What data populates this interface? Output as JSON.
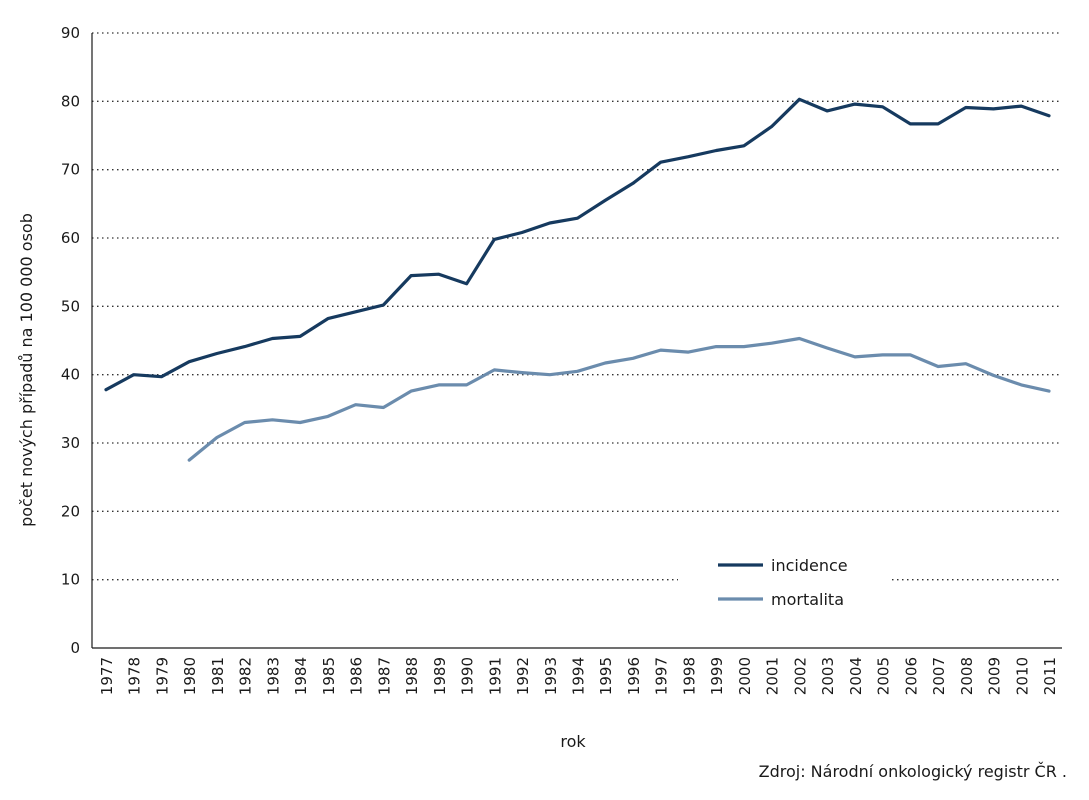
{
  "chart_data": {
    "type": "line",
    "xlabel": "rok",
    "ylabel": "počet nových případů na 100 000 osob",
    "ylim": [
      0,
      90
    ],
    "yticks": [
      0,
      10,
      20,
      30,
      40,
      50,
      60,
      70,
      80,
      90
    ],
    "grid": "horizontal dotted",
    "legend": "bottom-right",
    "x": [
      1977,
      1978,
      1979,
      1980,
      1981,
      1982,
      1983,
      1984,
      1985,
      1986,
      1987,
      1988,
      1989,
      1990,
      1991,
      1992,
      1993,
      1994,
      1995,
      1996,
      1997,
      1998,
      1999,
      2000,
      2001,
      2002,
      2003,
      2004,
      2005,
      2006,
      2007,
      2008,
      2009,
      2010,
      2011
    ],
    "series": [
      {
        "name": "incidence",
        "color": "#163a5f",
        "values": [
          37.8,
          40.0,
          39.7,
          41.9,
          43.1,
          44.1,
          45.3,
          45.6,
          48.2,
          49.2,
          50.2,
          54.5,
          54.7,
          53.3,
          59.8,
          60.8,
          62.2,
          62.9,
          65.5,
          68.0,
          71.1,
          71.9,
          72.8,
          73.5,
          76.3,
          80.3,
          78.6,
          79.6,
          79.2,
          76.7,
          76.7,
          79.1,
          78.9,
          79.3,
          77.9
        ]
      },
      {
        "name": "mortalita",
        "color": "#6b8cad",
        "values": [
          null,
          null,
          null,
          27.5,
          30.8,
          33.0,
          33.4,
          33.0,
          33.9,
          35.6,
          35.2,
          37.6,
          38.5,
          38.5,
          40.7,
          40.3,
          40.0,
          40.5,
          41.7,
          42.4,
          43.6,
          43.3,
          44.1,
          44.1,
          44.6,
          45.3,
          43.9,
          42.6,
          42.9,
          42.9,
          41.2,
          41.6,
          39.9,
          38.5,
          37.6
        ]
      }
    ]
  },
  "source_text": "Zdroj: Národní onkologický registr ČR ."
}
